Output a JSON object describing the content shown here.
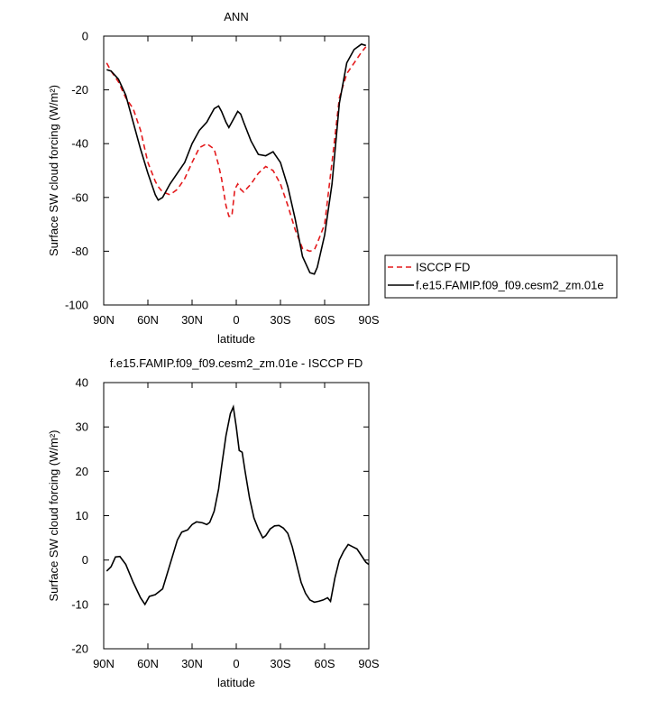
{
  "chart_data": [
    {
      "type": "line",
      "title": "ANN",
      "x_label": "latitude",
      "y_label": "Surface SW cloud forcing (W/m²)",
      "x": [
        88,
        85,
        80,
        75,
        70,
        65,
        60,
        55,
        53,
        50,
        45,
        40,
        35,
        30,
        25,
        20,
        15,
        12,
        10,
        7,
        5,
        3,
        1,
        -1,
        -3,
        -5,
        -10,
        -15,
        -20,
        -25,
        -30,
        -35,
        -40,
        -45,
        -50,
        -53,
        -55,
        -60,
        -65,
        -70,
        -75,
        -80,
        -85,
        -88
      ],
      "xlim": [
        90,
        -90
      ],
      "xticks": [
        {
          "value": 90,
          "label": "90N"
        },
        {
          "value": 60,
          "label": "60N"
        },
        {
          "value": 30,
          "label": "30N"
        },
        0,
        {
          "value": -30,
          "label": "30S"
        },
        {
          "value": -60,
          "label": "60S"
        },
        {
          "value": -90,
          "label": "90S"
        }
      ],
      "ylim": [
        -100,
        0
      ],
      "yticks": [
        0,
        -20,
        -40,
        -60,
        -80,
        -100
      ],
      "series": [
        {
          "name": "ISCCP FD",
          "color": "#e41a1c",
          "dash": true,
          "values": [
            -10,
            -13,
            -17,
            -23,
            -27,
            -35,
            -47,
            -54,
            -56,
            -58,
            -59,
            -57,
            -53,
            -47,
            -41.5,
            -40,
            -42,
            -48,
            -53,
            -63,
            -67,
            -67,
            -57,
            -55,
            -57,
            -58,
            -55,
            -51,
            -48.5,
            -50,
            -55,
            -63,
            -72,
            -79,
            -80,
            -79.5,
            -77,
            -70,
            -47,
            -23,
            -14,
            -10,
            -6,
            -4
          ]
        },
        {
          "name": "f.e15.FAMIP.f09_f09.cesm2_zm.01e",
          "color": "#000000",
          "dash": false,
          "values": [
            -12.5,
            -13,
            -16,
            -22,
            -32,
            -42,
            -51,
            -59,
            -61,
            -60,
            -55,
            -51,
            -47,
            -40,
            -35,
            -32,
            -27,
            -26,
            -28,
            -32,
            -34,
            -32,
            -30,
            -28,
            -29,
            -32,
            -39,
            -44,
            -44.5,
            -43,
            -47,
            -56,
            -68,
            -82,
            -88,
            -88.5,
            -86,
            -74,
            -55,
            -25,
            -10,
            -5,
            -3,
            -3.5
          ]
        }
      ]
    },
    {
      "type": "line",
      "title": "f.e15.FAMIP.f09_f09.cesm2_zm.01e - ISCCP FD",
      "x_label": "latitude",
      "y_label": "Surface SW cloud forcing (W/m²)",
      "x": [
        88,
        85,
        82,
        79,
        75,
        70,
        65,
        62,
        59,
        55,
        50,
        45,
        40,
        37,
        33,
        30,
        27,
        23,
        20,
        18,
        15,
        12,
        10,
        7,
        4,
        2,
        0,
        -2,
        -4,
        -6,
        -9,
        -12,
        -15,
        -18,
        -20,
        -23,
        -26,
        -29,
        -32,
        -35,
        -38,
        -41,
        -44,
        -47,
        -50,
        -53,
        -56,
        -59,
        -62,
        -64,
        -67,
        -70,
        -73,
        -76,
        -79,
        -82,
        -85,
        -88,
        -90
      ],
      "xlim": [
        90,
        -90
      ],
      "xticks": [
        {
          "value": 90,
          "label": "90N"
        },
        {
          "value": 60,
          "label": "60N"
        },
        {
          "value": 30,
          "label": "30N"
        },
        0,
        {
          "value": -30,
          "label": "30S"
        },
        {
          "value": -60,
          "label": "60S"
        },
        {
          "value": -90,
          "label": "90S"
        }
      ],
      "ylim": [
        -20,
        40
      ],
      "yticks": [
        40,
        30,
        20,
        10,
        0,
        -10,
        -20
      ],
      "series": [
        {
          "color": "#000000",
          "dash": false,
          "values": [
            -2.5,
            -1.5,
            0.7,
            0.8,
            -1,
            -5,
            -8.5,
            -10,
            -8.2,
            -7.8,
            -6.5,
            -1,
            4.5,
            6.3,
            6.8,
            8,
            8.6,
            8.4,
            8,
            8.5,
            11,
            16,
            21,
            28,
            33,
            34.5,
            30,
            24.7,
            24.3,
            20,
            14,
            9.5,
            7,
            5,
            5.5,
            7,
            7.7,
            7.8,
            7.2,
            6,
            3,
            -1,
            -5,
            -7.5,
            -9,
            -9.5,
            -9.3,
            -9,
            -8.5,
            -9.3,
            -4,
            0,
            2,
            3.5,
            3,
            2.5,
            1,
            -0.5,
            -1
          ]
        }
      ]
    }
  ]
}
